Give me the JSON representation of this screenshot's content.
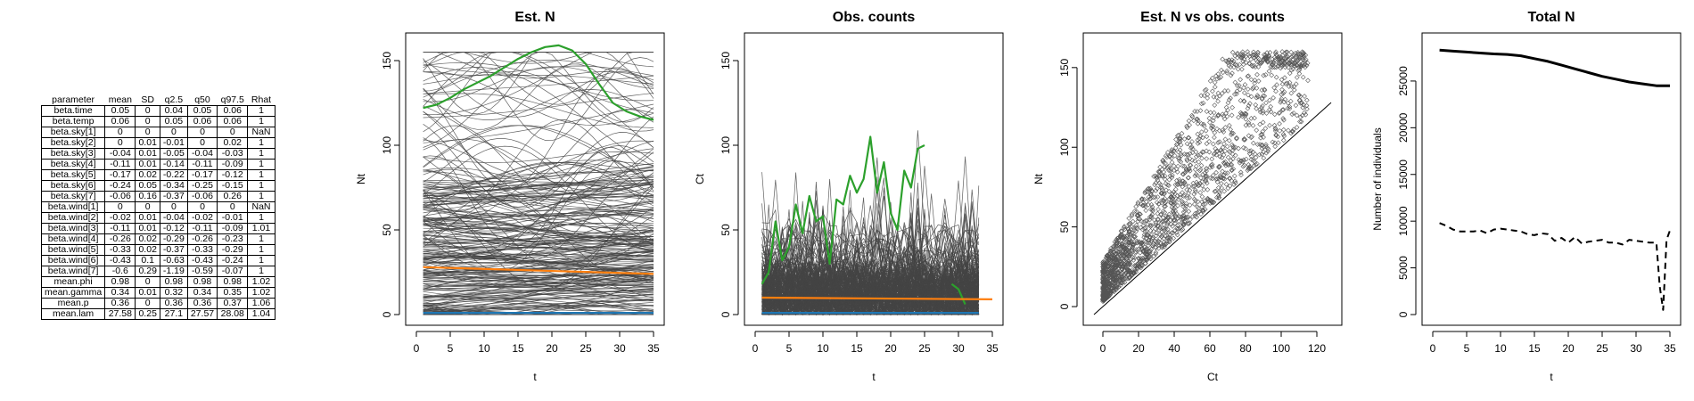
{
  "table": {
    "headers": [
      "parameter",
      "mean",
      "SD",
      "q2.5",
      "q50",
      "q97.5",
      "Rhat"
    ],
    "rows": [
      [
        "beta.time",
        "0.05",
        "0",
        "0.04",
        "0.05",
        "0.06",
        "1"
      ],
      [
        "beta.temp",
        "0.06",
        "0",
        "0.05",
        "0.06",
        "0.06",
        "1"
      ],
      [
        "beta.sky[1]",
        "0",
        "0",
        "0",
        "0",
        "0",
        "NaN"
      ],
      [
        "beta.sky[2]",
        "0",
        "0.01",
        "-0.01",
        "0",
        "0.02",
        "1"
      ],
      [
        "beta.sky[3]",
        "-0.04",
        "0.01",
        "-0.05",
        "-0.04",
        "-0.03",
        "1"
      ],
      [
        "beta.sky[4]",
        "-0.11",
        "0.01",
        "-0.14",
        "-0.11",
        "-0.09",
        "1"
      ],
      [
        "beta.sky[5]",
        "-0.17",
        "0.02",
        "-0.22",
        "-0.17",
        "-0.12",
        "1"
      ],
      [
        "beta.sky[6]",
        "-0.24",
        "0.05",
        "-0.34",
        "-0.25",
        "-0.15",
        "1"
      ],
      [
        "beta.sky[7]",
        "-0.06",
        "0.16",
        "-0.37",
        "-0.06",
        "0.26",
        "1"
      ],
      [
        "beta.wind[1]",
        "0",
        "0",
        "0",
        "0",
        "0",
        "NaN"
      ],
      [
        "beta.wind[2]",
        "-0.02",
        "0.01",
        "-0.04",
        "-0.02",
        "-0.01",
        "1"
      ],
      [
        "beta.wind[3]",
        "-0.11",
        "0.01",
        "-0.12",
        "-0.11",
        "-0.09",
        "1.01"
      ],
      [
        "beta.wind[4]",
        "-0.26",
        "0.02",
        "-0.29",
        "-0.26",
        "-0.23",
        "1"
      ],
      [
        "beta.wind[5]",
        "-0.33",
        "0.02",
        "-0.37",
        "-0.33",
        "-0.29",
        "1"
      ],
      [
        "beta.wind[6]",
        "-0.43",
        "0.1",
        "-0.63",
        "-0.43",
        "-0.24",
        "1"
      ],
      [
        "beta.wind[7]",
        "-0.6",
        "0.29",
        "-1.19",
        "-0.59",
        "-0.07",
        "1"
      ],
      [
        "mean.phi",
        "0.98",
        "0",
        "0.98",
        "0.98",
        "0.98",
        "1.02"
      ],
      [
        "mean.gamma",
        "0.34",
        "0.01",
        "0.32",
        "0.34",
        "0.35",
        "1.02"
      ],
      [
        "mean.p",
        "0.36",
        "0",
        "0.36",
        "0.36",
        "0.37",
        "1.06"
      ],
      [
        "mean.lam",
        "27.58",
        "0.25",
        "27.1",
        "27.57",
        "28.08",
        "1.04"
      ]
    ]
  },
  "chart_data": [
    {
      "type": "line",
      "title": "Est. N",
      "xlabel": "t",
      "ylabel": "Nt",
      "xlim": [
        0,
        35
      ],
      "ylim": [
        0,
        160
      ],
      "xticks": [
        0,
        5,
        10,
        15,
        20,
        25,
        30,
        35
      ],
      "yticks": [
        0,
        50,
        100,
        150
      ],
      "series": [
        {
          "color": "#2ca02c",
          "x": [
            1,
            3,
            5,
            7,
            9,
            11,
            13,
            15,
            17,
            19,
            21,
            23,
            25,
            27,
            29,
            31,
            33,
            35
          ],
          "values": [
            122,
            124,
            128,
            133,
            137,
            141,
            146,
            151,
            155,
            158,
            159,
            156,
            148,
            136,
            125,
            120,
            117,
            115
          ]
        },
        {
          "color": "#ff7f0e",
          "x": [
            1,
            35
          ],
          "values": [
            28,
            24
          ]
        },
        {
          "color": "#1f77b4",
          "x": [
            1,
            35
          ],
          "values": [
            1,
            1
          ]
        }
      ],
      "background_lines": {
        "color": "#444444",
        "count": 260,
        "x_range": [
          1,
          35
        ],
        "value_range": [
          0,
          155
        ]
      }
    },
    {
      "type": "line",
      "title": "Obs. counts",
      "xlabel": "t",
      "ylabel": "Ct",
      "xlim": [
        0,
        35
      ],
      "ylim": [
        0,
        160
      ],
      "xticks": [
        0,
        5,
        10,
        15,
        20,
        25,
        30,
        35
      ],
      "yticks": [
        0,
        50,
        100,
        150
      ],
      "series": [
        {
          "color": "#2ca02c",
          "x": [
            1,
            2,
            3,
            4,
            5,
            6,
            7,
            8,
            9,
            10,
            11,
            12,
            13,
            14,
            15,
            16,
            17,
            18,
            19,
            20,
            21,
            22,
            23,
            24,
            25
          ],
          "values": [
            18,
            25,
            55,
            32,
            40,
            65,
            48,
            70,
            55,
            58,
            30,
            68,
            65,
            82,
            72,
            80,
            105,
            72,
            90,
            60,
            50,
            85,
            75,
            98,
            100
          ]
        },
        {
          "color": "#2ca02c",
          "x": [
            29,
            30,
            31
          ],
          "values": [
            18,
            15,
            6
          ]
        },
        {
          "color": "#ff7f0e",
          "x": [
            1,
            35
          ],
          "values": [
            10,
            9
          ]
        },
        {
          "color": "#1f77b4",
          "x": [
            1,
            33
          ],
          "values": [
            1,
            1
          ]
        }
      ],
      "background_lines": {
        "color": "#444444",
        "count": 220,
        "x_range": [
          1,
          33
        ],
        "value_range": [
          0,
          124
        ]
      }
    },
    {
      "type": "scatter",
      "title": "Est. N vs obs. counts",
      "xlabel": "Ct",
      "ylabel": "Nt",
      "xlim": [
        -5,
        128
      ],
      "ylim": [
        -5,
        165
      ],
      "xticks": [
        0,
        20,
        40,
        60,
        80,
        100,
        120
      ],
      "yticks": [
        0,
        50,
        100,
        150
      ],
      "reference_line": {
        "slope": 1,
        "intercept": 0
      },
      "point_count": 1800,
      "point_color": "#555555"
    },
    {
      "type": "line",
      "title": "Total N",
      "xlabel": "t",
      "ylabel": "Number of individuals",
      "xlim": [
        0,
        35
      ],
      "ylim": [
        0,
        29000
      ],
      "xticks": [
        0,
        5,
        10,
        15,
        20,
        25,
        30,
        35
      ],
      "yticks": [
        0,
        5000,
        10000,
        15000,
        20000,
        25000
      ],
      "series": [
        {
          "style": "solid",
          "color": "#000000",
          "x": [
            1,
            3,
            5,
            7,
            9,
            11,
            13,
            15,
            17,
            19,
            21,
            23,
            25,
            27,
            29,
            31,
            33,
            35
          ],
          "values": [
            28300,
            28200,
            28100,
            28000,
            27900,
            27850,
            27700,
            27400,
            27100,
            26700,
            26300,
            25900,
            25500,
            25200,
            24900,
            24700,
            24500,
            24500
          ]
        },
        {
          "style": "dashed",
          "color": "#000000",
          "x": [
            1,
            2,
            3,
            4,
            5,
            6,
            7,
            8,
            9,
            10,
            11,
            12,
            13,
            14,
            15,
            16,
            17,
            18,
            19,
            20,
            21,
            22,
            23,
            24,
            25,
            26,
            27,
            28,
            29,
            30,
            31,
            32,
            33,
            33.5,
            34,
            34.5,
            35
          ],
          "values": [
            9800,
            9500,
            9100,
            8900,
            8900,
            8900,
            9000,
            8700,
            9100,
            9200,
            9100,
            9000,
            8900,
            8600,
            8500,
            8700,
            8600,
            7900,
            8200,
            7700,
            8300,
            7600,
            7800,
            7900,
            8000,
            7700,
            7700,
            7500,
            8000,
            7900,
            7800,
            7700,
            7700,
            3000,
            500,
            8000,
            9000
          ]
        }
      ]
    }
  ]
}
